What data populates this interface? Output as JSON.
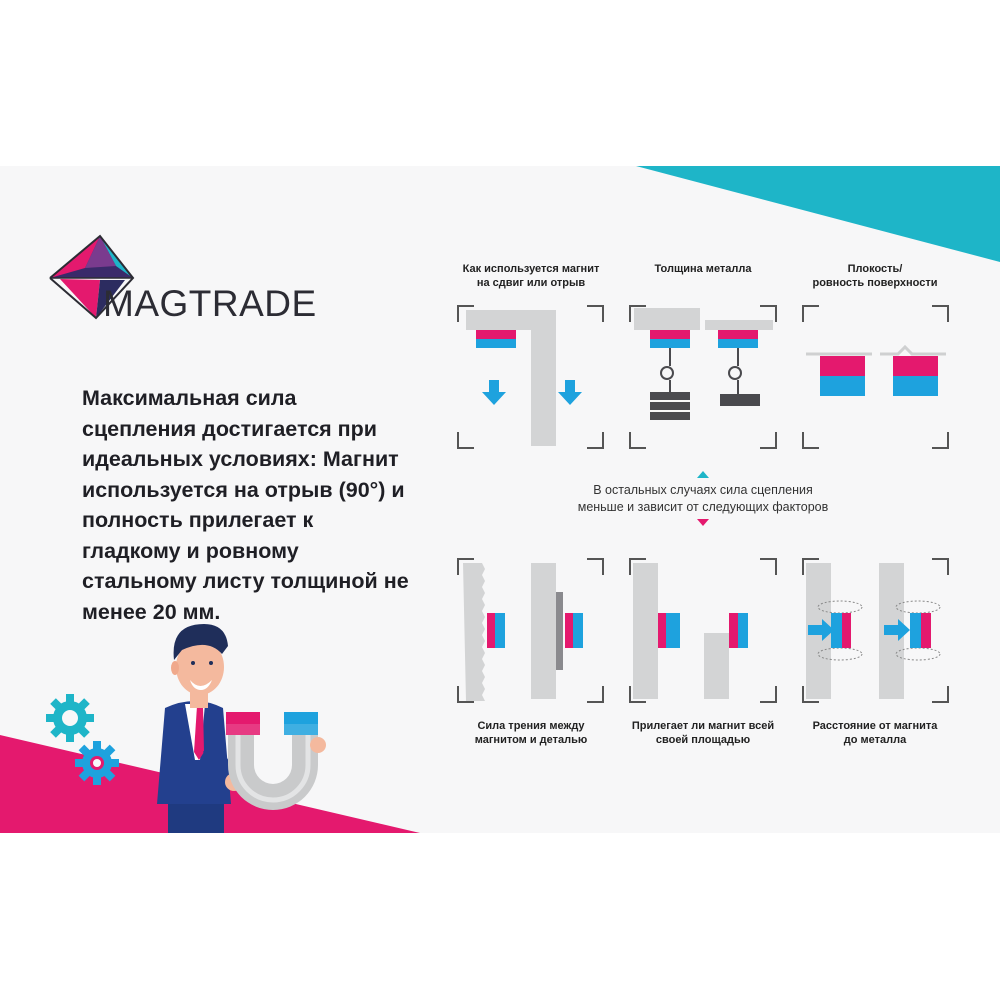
{
  "brand": {
    "name": "MAGTRADE"
  },
  "headline": "Максимальная сила сцепления достигается при идеальных условиях: Магнит используется на отрыв (90°) и полность прилегает к гладкому и ровному стальному листу толщиной не менее 20 мм.",
  "top_panels": [
    {
      "caption": "Как используется магнит\nна сдвиг или отрыв"
    },
    {
      "caption": "Толщина металла"
    },
    {
      "caption": "Плокость/\nровность поверхности"
    }
  ],
  "middle_note": "В остальных случаях сила сцепления\nменьше и зависит от следующих факторов",
  "bottom_panels": [
    {
      "caption": "Сила трения между\nмагнитом и деталью"
    },
    {
      "caption": "Прилегает ли магнит всей\nсвоей площадью"
    },
    {
      "caption": "Расстояние от магнита\nдо металла"
    }
  ],
  "colors": {
    "teal": "#1eb5c8",
    "magenta": "#e4196e",
    "blue": "#1ea2de",
    "gray": "#cfd0d1",
    "dark": "#4a4a4e",
    "suit": "#23408e"
  },
  "icons": [
    "magtrade-logo-icon",
    "gear-icon",
    "arrow-down-icon",
    "arrow-right-icon",
    "triangle-up-icon",
    "triangle-down-icon"
  ]
}
